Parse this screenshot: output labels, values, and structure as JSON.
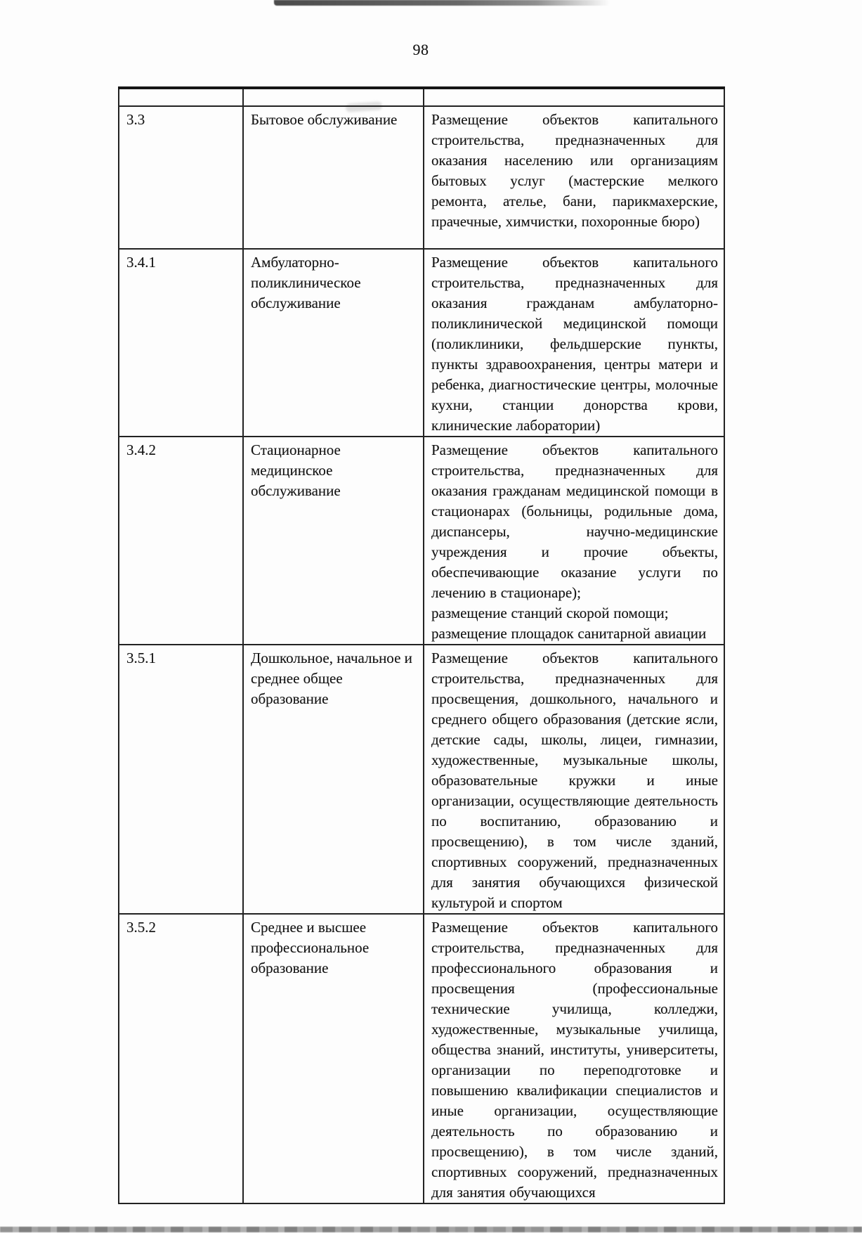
{
  "page": {
    "number": "98"
  },
  "table": {
    "rows": [
      {
        "code": "3.3",
        "name": "Бытовое обслуживание",
        "description": [
          "Размещение объектов капитального строительства, предназначенных для оказания населению или организациям бытовых услуг (мастерские мелкого ремонта, ателье, бани, парикмахерские, прачечные, химчистки, похоронные бюро)"
        ]
      },
      {
        "code": "3.4.1",
        "name": "Амбулаторно-поликлиническое обслуживание",
        "description": [
          "Размещение объектов капитального строительства, предназначенных для оказания гражданам амбулаторно-поликлинической медицинской помощи (поликлиники, фельдшерские пункты, пункты здравоохранения, центры матери и ребенка, диагностические центры, молочные кухни, станции донорства крови, клинические лаборатории)"
        ]
      },
      {
        "code": "3.4.2",
        "name": "Стационарное медицинское обслуживание",
        "description": [
          "Размещение объектов капитального строительства, предназначенных для оказания гражданам медицинской помощи в стационарах (больницы, родильные дома, диспансеры, научно-медицинские учреждения и прочие объекты, обеспечивающие оказание услуги по лечению в стационаре);",
          "размещение станций скорой помощи;",
          "размещение площадок санитарной авиации"
        ]
      },
      {
        "code": "3.5.1",
        "name": "Дошкольное, начальное и среднее общее образование",
        "description": [
          "Размещение объектов капитального строительства, предназначенных для просвещения, дошкольного, начального и среднего общего образования (детские ясли, детские сады, школы, лицеи, гимназии, художественные, музыкальные школы, образовательные кружки и иные организации, осуществляющие деятельность по воспитанию, образованию и просвещению), в том числе зданий, спортивных сооружений, предназначенных для занятия обучающихся физической культурой и спортом"
        ]
      },
      {
        "code": "3.5.2",
        "name": "Среднее и высшее профессиональное образование",
        "description": [
          "Размещение объектов капитального строительства, предназначенных для профессионального образования и просвещения (профессиональные технические училища, колледжи, художественные, музыкальные училища, общества знаний, институты, университеты, организации по переподготовке и повышению квалификации специалистов и иные организации, осуществляющие деятельность по образованию и просвещению), в том числе зданий, спортивных сооружений, предназначенных для занятия обучающихся"
        ]
      }
    ]
  }
}
